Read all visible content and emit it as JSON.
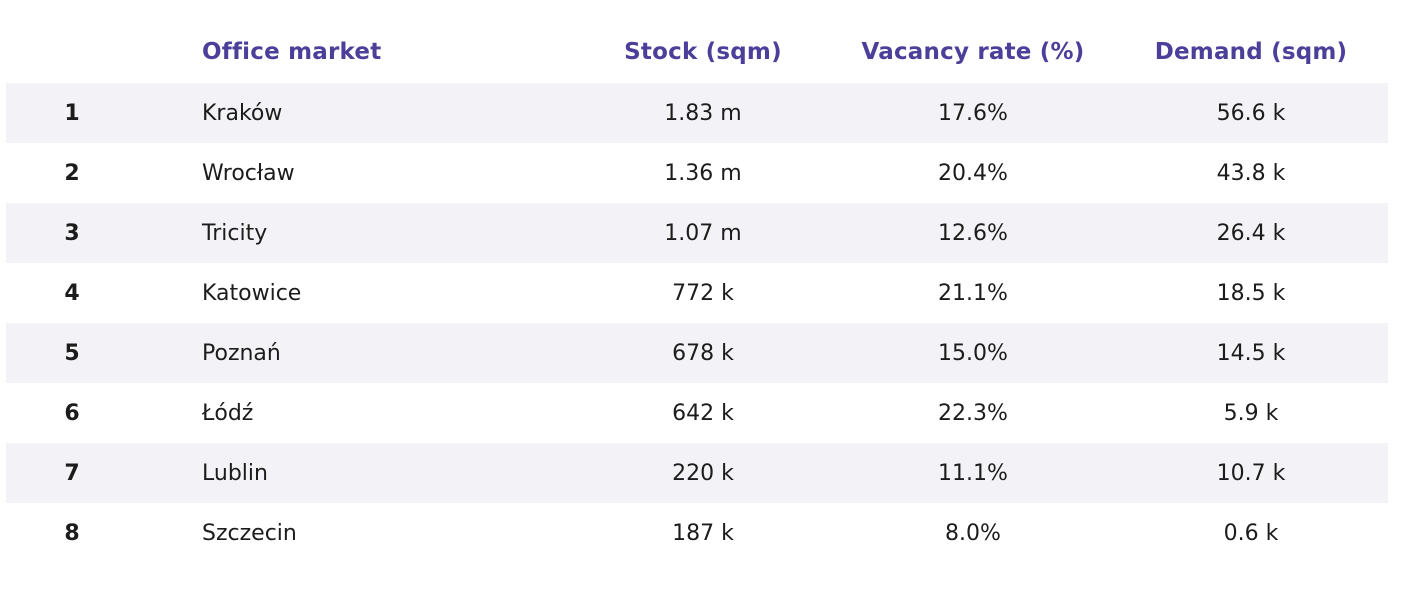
{
  "table": {
    "headers": {
      "rank": "",
      "market": "Office market",
      "stock": "Stock (sqm)",
      "vacancy": "Vacancy rate (%)",
      "demand": "Demand (sqm)"
    },
    "rows": [
      {
        "rank": "1",
        "market": "Kraków",
        "stock": "1.83 m",
        "vacancy": "17.6%",
        "demand": "56.6 k"
      },
      {
        "rank": "2",
        "market": "Wrocław",
        "stock": "1.36 m",
        "vacancy": "20.4%",
        "demand": "43.8 k"
      },
      {
        "rank": "3",
        "market": "Tricity",
        "stock": "1.07 m",
        "vacancy": "12.6%",
        "demand": "26.4 k"
      },
      {
        "rank": "4",
        "market": "Katowice",
        "stock": "772 k",
        "vacancy": "21.1%",
        "demand": "18.5 k"
      },
      {
        "rank": "5",
        "market": "Poznań",
        "stock": "678 k",
        "vacancy": "15.0%",
        "demand": "14.5 k"
      },
      {
        "rank": "6",
        "market": "Łódź",
        "stock": "642 k",
        "vacancy": "22.3%",
        "demand": "5.9 k"
      },
      {
        "rank": "7",
        "market": "Lublin",
        "stock": "220 k",
        "vacancy": "11.1%",
        "demand": "10.7 k"
      },
      {
        "rank": "8",
        "market": "Szczecin",
        "stock": "187 k",
        "vacancy": "8.0%",
        "demand": "0.6 k"
      }
    ]
  },
  "colors": {
    "header_text": "#4b3f9a",
    "row_stripe": "#f3f3f7",
    "body_text": "#1c1c1c"
  }
}
